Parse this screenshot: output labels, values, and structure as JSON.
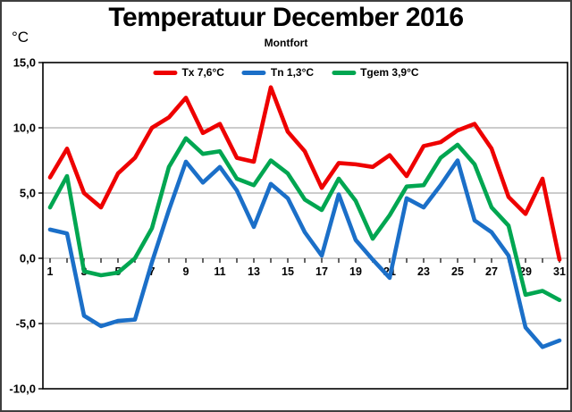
{
  "page": {
    "title": "Temperatuur December 2016",
    "subtitle": "Montfort",
    "unit_label": "°C"
  },
  "legend": [
    {
      "label": "Tx 7,6°C",
      "color": "#ee0000"
    },
    {
      "label": "Tn 1,3°C",
      "color": "#1b6fc8"
    },
    {
      "label": "Tgem 3,9°C",
      "color": "#00a651"
    }
  ],
  "chart_data": {
    "type": "line",
    "title": "Temperatuur December 2016",
    "subtitle": "Montfort",
    "ylabel": "°C",
    "xlabel": "",
    "ylim": [
      -10,
      15
    ],
    "grid": true,
    "legend_position": "top-center",
    "x": [
      1,
      2,
      3,
      4,
      5,
      6,
      7,
      8,
      9,
      10,
      11,
      12,
      13,
      14,
      15,
      16,
      17,
      18,
      19,
      20,
      21,
      22,
      23,
      24,
      25,
      26,
      27,
      28,
      29,
      30,
      31
    ],
    "x_tick_labels": [
      1,
      3,
      5,
      7,
      9,
      11,
      13,
      15,
      17,
      19,
      21,
      23,
      25,
      27,
      29,
      31
    ],
    "y_ticks": [
      {
        "value": 15,
        "label": "15,0"
      },
      {
        "value": 10,
        "label": "10,0"
      },
      {
        "value": 5,
        "label": "5,0"
      },
      {
        "value": 0,
        "label": "0,0"
      },
      {
        "value": -5,
        "label": "-5,0"
      },
      {
        "value": -10,
        "label": "-10,0"
      }
    ],
    "gridline_values": [
      10,
      5,
      0,
      -5
    ],
    "series": [
      {
        "name": "Tx 7,6°C",
        "color": "#ee0000",
        "values": [
          6.2,
          8.4,
          5.0,
          3.9,
          6.5,
          7.7,
          10.0,
          10.8,
          12.3,
          9.6,
          10.3,
          7.7,
          7.4,
          13.1,
          9.7,
          8.2,
          5.4,
          7.3,
          7.2,
          7.0,
          7.9,
          6.3,
          8.6,
          8.9,
          9.8,
          10.3,
          8.4,
          4.7,
          3.4,
          6.1,
          -0.1
        ]
      },
      {
        "name": "Tn 1,3°C",
        "color": "#1b6fc8",
        "values": [
          2.2,
          1.9,
          -4.4,
          -5.2,
          -4.8,
          -4.7,
          -0.3,
          3.7,
          7.4,
          5.8,
          7.0,
          5.2,
          2.4,
          5.7,
          4.6,
          2.0,
          0.2,
          4.9,
          1.4,
          -0.1,
          -1.5,
          4.6,
          3.9,
          5.6,
          7.5,
          2.9,
          2.0,
          0.2,
          -5.3,
          -6.8,
          -6.3
        ]
      },
      {
        "name": "Tgem 3,9°C",
        "color": "#00a651",
        "values": [
          3.9,
          6.3,
          -1.0,
          -1.3,
          -1.1,
          0.0,
          2.3,
          7.0,
          9.2,
          8.0,
          8.2,
          6.1,
          5.6,
          7.5,
          6.5,
          4.5,
          3.7,
          6.1,
          4.4,
          1.5,
          3.3,
          5.5,
          5.6,
          7.7,
          8.7,
          7.2,
          3.9,
          2.5,
          -2.8,
          -2.5,
          -3.2
        ]
      }
    ]
  }
}
